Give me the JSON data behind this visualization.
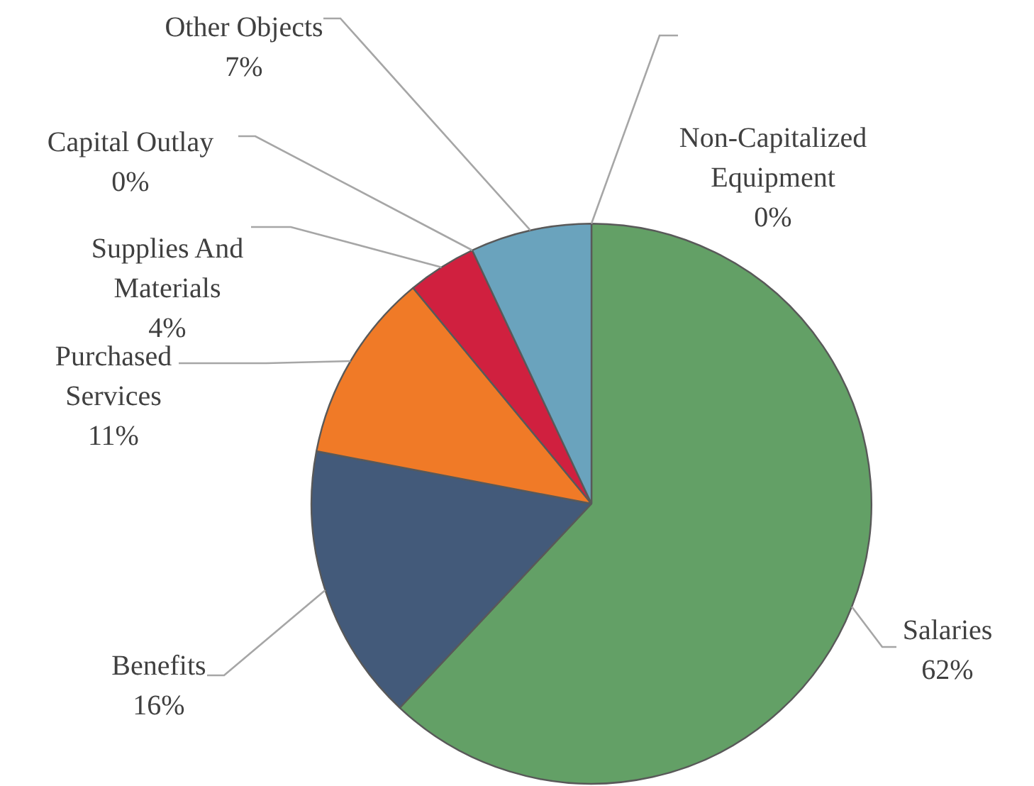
{
  "chart_data": {
    "type": "pie",
    "categories": [
      "Salaries",
      "Benefits",
      "Purchased Services",
      "Supplies And Materials",
      "Capital Outlay",
      "Other Objects",
      "Non-Capitalized Equipment"
    ],
    "values": [
      62,
      16,
      11,
      4,
      0,
      7,
      0
    ],
    "value_labels": [
      "62%",
      "16%",
      "11%",
      "4%",
      "0%",
      "7%",
      "0%"
    ],
    "colors": [
      "#63a066",
      "#435a7a",
      "#f07a27",
      "#d0203f",
      "#8b6fa8",
      "#6aa3bd",
      "#a5a5a5"
    ],
    "legend": false
  }
}
